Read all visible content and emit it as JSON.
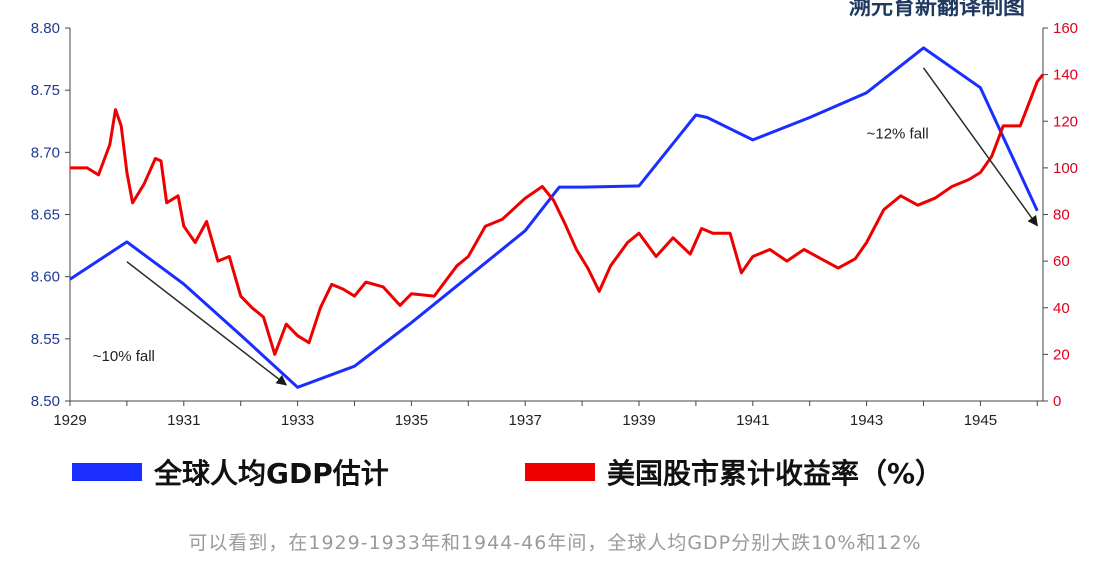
{
  "title": "溯元育新翻译制图",
  "chart_data": {
    "type": "line",
    "x_range": [
      1929,
      1946.1
    ],
    "x_ticks": [
      "1929",
      "1931",
      "1933",
      "1935",
      "1937",
      "1939",
      "1941",
      "1943",
      "1945"
    ],
    "y_left": {
      "range": [
        8.5,
        8.8
      ],
      "ticks": [
        "8.50",
        "8.55",
        "8.60",
        "8.65",
        "8.70",
        "8.75",
        "8.80"
      ],
      "color": "#1f3a93"
    },
    "y_right": {
      "range": [
        0,
        160
      ],
      "ticks": [
        "0",
        "20",
        "40",
        "60",
        "80",
        "100",
        "120",
        "140",
        "160"
      ],
      "color": "#e0001b"
    },
    "grid": false,
    "legend_position": "bottom",
    "series": [
      {
        "name": "全球人均GDP估计",
        "color": "#1a2eff",
        "axis": "left",
        "points": [
          [
            1929.0,
            8.598
          ],
          [
            1930.0,
            8.628
          ],
          [
            1931.0,
            8.594
          ],
          [
            1932.0,
            8.553
          ],
          [
            1933.0,
            8.511
          ],
          [
            1934.0,
            8.528
          ],
          [
            1935.0,
            8.563
          ],
          [
            1936.0,
            8.6
          ],
          [
            1937.0,
            8.637
          ],
          [
            1937.6,
            8.672
          ],
          [
            1938.0,
            8.672
          ],
          [
            1939.0,
            8.673
          ],
          [
            1940.0,
            8.73
          ],
          [
            1940.2,
            8.728
          ],
          [
            1941.0,
            8.71
          ],
          [
            1942.0,
            8.728
          ],
          [
            1943.0,
            8.748
          ],
          [
            1944.0,
            8.784
          ],
          [
            1945.0,
            8.752
          ],
          [
            1946.0,
            8.653
          ]
        ]
      },
      {
        "name": "美国股市累计收益率（%）",
        "color": "#ee0000",
        "axis": "right",
        "points": [
          [
            1929.0,
            100
          ],
          [
            1929.3,
            100
          ],
          [
            1929.5,
            97
          ],
          [
            1929.7,
            110
          ],
          [
            1929.8,
            125
          ],
          [
            1929.9,
            118
          ],
          [
            1930.0,
            98
          ],
          [
            1930.1,
            85
          ],
          [
            1930.3,
            93
          ],
          [
            1930.5,
            104
          ],
          [
            1930.6,
            103
          ],
          [
            1930.7,
            85
          ],
          [
            1930.9,
            88
          ],
          [
            1931.0,
            75
          ],
          [
            1931.2,
            68
          ],
          [
            1931.4,
            77
          ],
          [
            1931.6,
            60
          ],
          [
            1931.8,
            62
          ],
          [
            1932.0,
            45
          ],
          [
            1932.2,
            40
          ],
          [
            1932.4,
            36
          ],
          [
            1932.6,
            20
          ],
          [
            1932.8,
            33
          ],
          [
            1933.0,
            28
          ],
          [
            1933.2,
            25
          ],
          [
            1933.4,
            40
          ],
          [
            1933.6,
            50
          ],
          [
            1933.8,
            48
          ],
          [
            1934.0,
            45
          ],
          [
            1934.2,
            51
          ],
          [
            1934.5,
            49
          ],
          [
            1934.8,
            41
          ],
          [
            1935.0,
            46
          ],
          [
            1935.4,
            45
          ],
          [
            1935.8,
            58
          ],
          [
            1936.0,
            62
          ],
          [
            1936.3,
            75
          ],
          [
            1936.6,
            78
          ],
          [
            1937.0,
            87
          ],
          [
            1937.3,
            92
          ],
          [
            1937.5,
            86
          ],
          [
            1937.7,
            76
          ],
          [
            1937.9,
            65
          ],
          [
            1938.1,
            57
          ],
          [
            1938.3,
            47
          ],
          [
            1938.5,
            58
          ],
          [
            1938.8,
            68
          ],
          [
            1939.0,
            72
          ],
          [
            1939.3,
            62
          ],
          [
            1939.6,
            70
          ],
          [
            1939.9,
            63
          ],
          [
            1940.1,
            74
          ],
          [
            1940.3,
            72
          ],
          [
            1940.6,
            72
          ],
          [
            1940.8,
            55
          ],
          [
            1941.0,
            62
          ],
          [
            1941.3,
            65
          ],
          [
            1941.6,
            60
          ],
          [
            1941.9,
            65
          ],
          [
            1942.2,
            61
          ],
          [
            1942.5,
            57
          ],
          [
            1942.8,
            61
          ],
          [
            1943.0,
            68
          ],
          [
            1943.3,
            82
          ],
          [
            1943.6,
            88
          ],
          [
            1943.9,
            84
          ],
          [
            1944.2,
            87
          ],
          [
            1944.5,
            92
          ],
          [
            1944.8,
            95
          ],
          [
            1945.0,
            98
          ],
          [
            1945.2,
            105
          ],
          [
            1945.4,
            118
          ],
          [
            1945.7,
            118
          ],
          [
            1946.0,
            137
          ],
          [
            1946.1,
            140
          ]
        ]
      }
    ],
    "annotations": [
      {
        "text": "~10% fall",
        "x": 1929.4,
        "y_left": 8.532
      },
      {
        "text": "~12% fall",
        "x": 1943.0,
        "y_left": 8.711
      }
    ],
    "arrows": [
      {
        "from": [
          1930.0,
          8.612
        ],
        "to": [
          1932.8,
          8.513
        ]
      },
      {
        "from": [
          1944.0,
          8.768
        ],
        "to": [
          1946.0,
          8.641
        ]
      }
    ]
  },
  "caption": "可以看到，在1929-1933年和1944-46年间，全球人均GDP分别大跌10%和12%"
}
